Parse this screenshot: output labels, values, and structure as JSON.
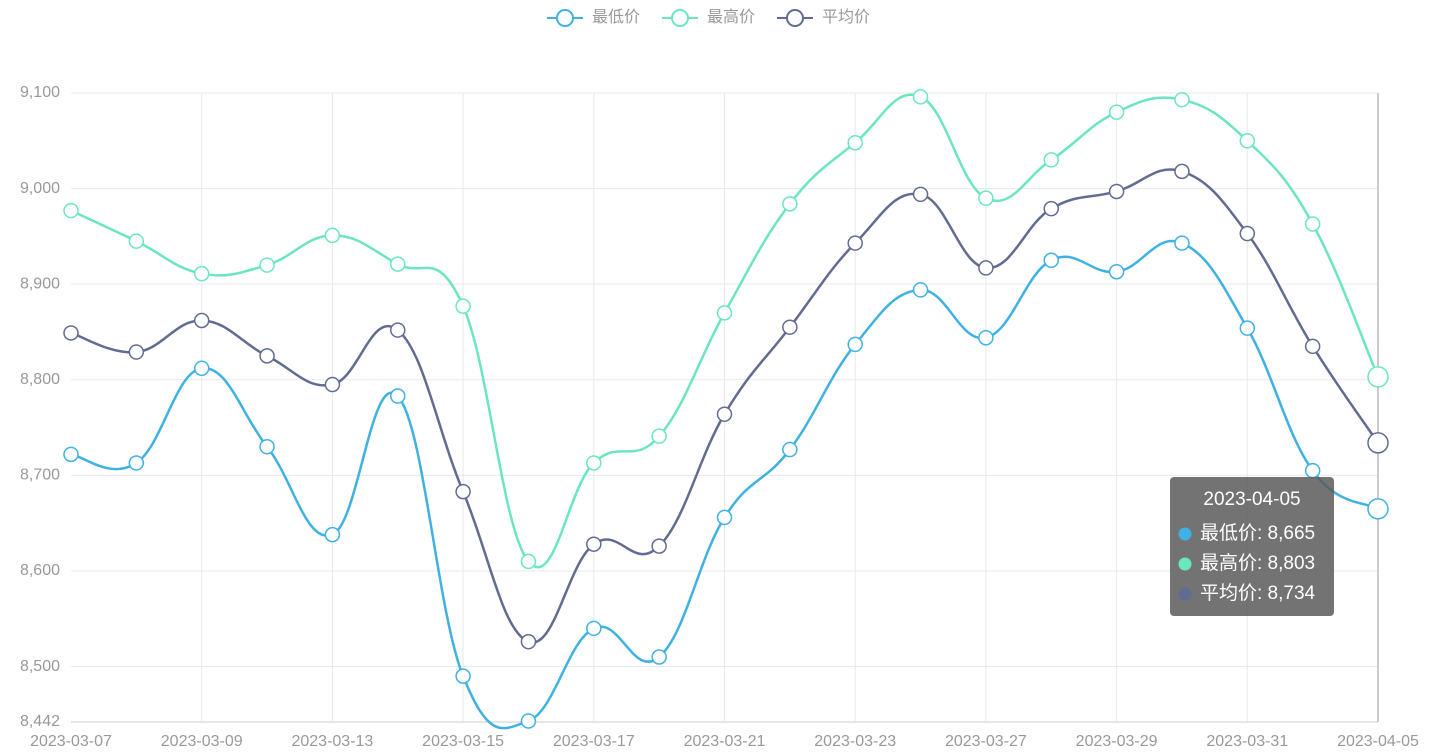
{
  "chart_data": {
    "type": "line",
    "smooth": true,
    "categories": [
      "2023-03-07",
      null,
      "2023-03-09",
      null,
      "2023-03-13",
      null,
      "2023-03-15",
      null,
      "2023-03-17",
      null,
      "2023-03-21",
      null,
      "2023-03-23",
      null,
      "2023-03-27",
      null,
      "2023-03-29",
      null,
      "2023-03-31",
      null,
      "2023-04-05"
    ],
    "series": [
      {
        "name": "最低价",
        "color": "#3fb1e3",
        "values": [
          8722,
          8713,
          8812,
          8730,
          8638,
          8783,
          8490,
          8443,
          8540,
          8510,
          8656,
          8727,
          8837,
          8894,
          8844,
          8925,
          8913,
          8943,
          8854,
          8705,
          8665
        ]
      },
      {
        "name": "最高价",
        "color": "#6be6c1",
        "values": [
          8977,
          8945,
          8911,
          8920,
          8951,
          8921,
          8877,
          8610,
          8713,
          8741,
          8870,
          8984,
          9048,
          9096,
          8990,
          9030,
          9080,
          9093,
          9050,
          8963,
          8803
        ]
      },
      {
        "name": "平均价",
        "color": "#626c91",
        "values": [
          8849,
          8829,
          8862,
          8825,
          8795,
          8852,
          8683,
          8526,
          8628,
          8626,
          8764,
          8855,
          8943,
          8994,
          8917,
          8979,
          8997,
          9018,
          8953,
          8835,
          8734
        ]
      }
    ],
    "ylim": [
      8442,
      9100
    ],
    "yticks": [
      {
        "value": 8442,
        "label": "8,442"
      },
      {
        "value": 8500,
        "label": "8,500"
      },
      {
        "value": 8600,
        "label": "8,600"
      },
      {
        "value": 8700,
        "label": "8,700"
      },
      {
        "value": 8800,
        "label": "8,800"
      },
      {
        "value": 8900,
        "label": "8,900"
      },
      {
        "value": 9000,
        "label": "9,000"
      },
      {
        "value": 9100,
        "label": "9,100"
      }
    ],
    "grid": true,
    "legend": "top",
    "tooltip": {
      "items": [
        "最低价: 8,665",
        "最高价: 8,803",
        "平均价: 8,734"
      ]
    }
  }
}
